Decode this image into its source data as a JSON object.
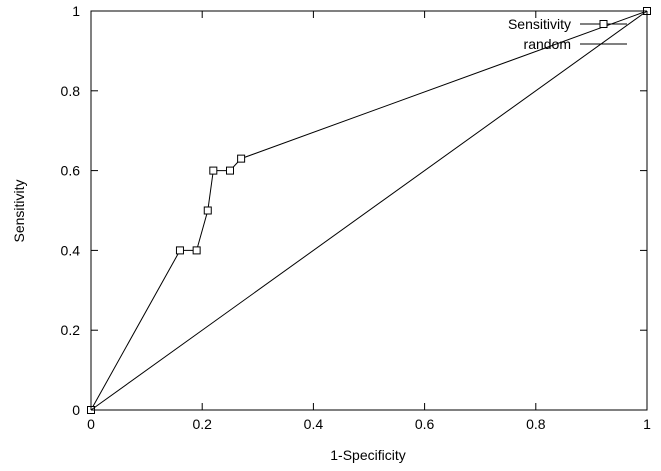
{
  "chart_data": {
    "type": "line",
    "title": "",
    "xlabel": "1-Specificity",
    "ylabel": "Sensitivity",
    "xlim": [
      0,
      1
    ],
    "ylim": [
      0,
      1
    ],
    "grid": false,
    "legend_position": "top-right",
    "x_ticks": [
      0,
      0.2,
      0.4,
      0.6,
      0.8,
      1
    ],
    "y_ticks": [
      0,
      0.2,
      0.4,
      0.6,
      0.8,
      1
    ],
    "x_tick_labels": [
      "0",
      "0.2",
      "0.4",
      "0.6",
      "0.8",
      "1"
    ],
    "y_tick_labels": [
      "0",
      "0.2",
      "0.4",
      "0.6",
      "0.8",
      "1"
    ],
    "series": [
      {
        "name": "Sensitivity",
        "marker": "square",
        "color": "#000000",
        "x": [
          0,
          0.16,
          0.19,
          0.21,
          0.22,
          0.25,
          0.27,
          1
        ],
        "y": [
          0,
          0.4,
          0.4,
          0.5,
          0.6,
          0.6,
          0.63,
          1
        ]
      },
      {
        "name": "random",
        "marker": "none",
        "color": "#000000",
        "x": [
          0,
          1
        ],
        "y": [
          0,
          1
        ]
      }
    ]
  }
}
